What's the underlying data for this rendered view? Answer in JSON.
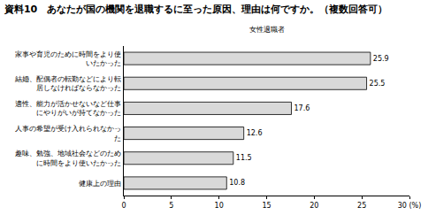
{
  "chart_data": {
    "type": "bar",
    "orientation": "horizontal",
    "title": "資料10　あなたが国の機関を退職するに至った原因、理由は何ですか。（複数回答可）",
    "subtitle": "女性退職者",
    "categories": [
      "家事や育児のために時間をより使いたかった",
      "結婚、配偶者の転勤などにより転居しなければならなかった",
      "適性、能力が活かせないなど仕事にやりがいが持てなかった",
      "人事の希望が受け入れられなかった",
      "趣味、勉強、地域社会などのために時間をより使いたかった",
      "健康上の理由"
    ],
    "values": [
      25.9,
      25.5,
      17.6,
      12.6,
      11.5,
      10.8
    ],
    "color": "#d9d9d9",
    "xlim": [
      0,
      30
    ],
    "xticks": [
      0,
      5,
      10,
      15,
      20,
      25,
      {
        "value": 30,
        "label": "30 (%)"
      }
    ],
    "grid": false,
    "data_labels": true
  }
}
